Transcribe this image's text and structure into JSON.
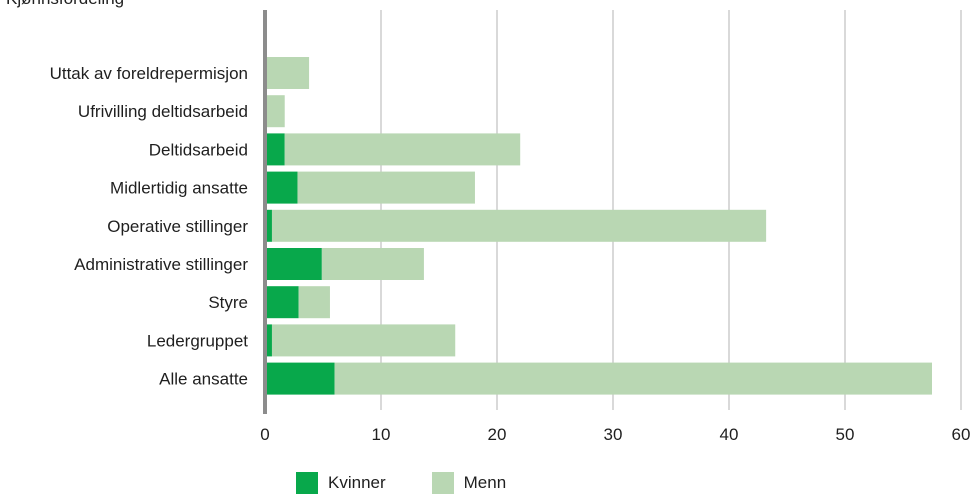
{
  "chart_data": {
    "type": "bar",
    "orientation": "horizontal",
    "stacked": true,
    "title": "Kjønnsfordeling",
    "categories": [
      "Uttak av foreldrepermisjon",
      "Ufrivilling deltidsarbeid",
      "Deltidsarbeid",
      "Midlertidig ansatte",
      "Operative stillinger",
      "Administrative stillinger",
      "Styre",
      "Ledergruppet",
      "Alle ansatte"
    ],
    "series": [
      {
        "name": "Kvinner",
        "color": "#08a84b",
        "values": [
          0,
          0,
          1.7,
          2.8,
          0.6,
          4.9,
          2.9,
          0.6,
          6.0
        ]
      },
      {
        "name": "Menn",
        "color": "#b9d7b3",
        "values": [
          3.8,
          1.7,
          20.3,
          15.3,
          42.6,
          8.8,
          2.7,
          15.8,
          51.5
        ]
      }
    ],
    "xlim": [
      0,
      60
    ],
    "xticks": [
      0,
      10,
      20,
      30,
      40,
      50,
      60
    ],
    "grid": true,
    "legend_position": "bottom"
  }
}
